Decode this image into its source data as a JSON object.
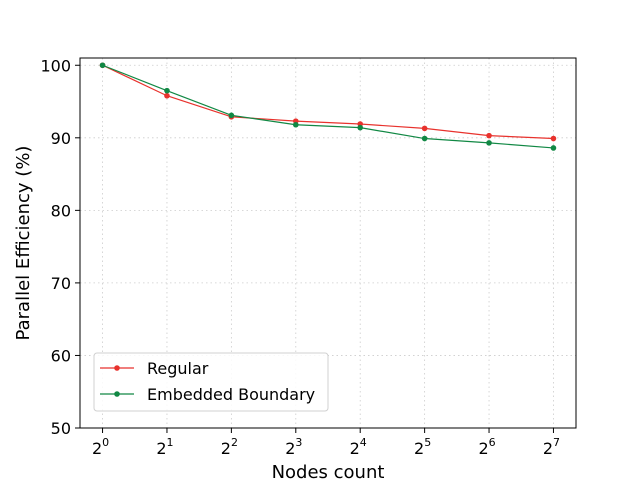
{
  "chart_data": {
    "type": "line",
    "title": "",
    "xlabel": "Nodes count",
    "ylabel": "Parallel Efficiency (%)",
    "x_base": "2",
    "x_exponents": [
      0,
      1,
      2,
      3,
      4,
      5,
      6,
      7
    ],
    "x": [
      1,
      2,
      4,
      8,
      16,
      32,
      64,
      128
    ],
    "x_scale": "log2",
    "ylim": [
      50,
      101
    ],
    "yticks": [
      50,
      60,
      70,
      80,
      90,
      100
    ],
    "grid": true,
    "grid_style": "dotted",
    "legend_position": "lower-left",
    "series": [
      {
        "name": "Regular",
        "color": "#e8322d",
        "marker": "dot",
        "values": [
          100,
          95.8,
          92.9,
          92.3,
          91.9,
          91.3,
          90.3,
          89.9
        ]
      },
      {
        "name": "Embedded Boundary",
        "color": "#118844",
        "marker": "dot",
        "values": [
          100,
          96.5,
          93.1,
          91.8,
          91.4,
          89.9,
          89.3,
          88.6
        ]
      }
    ]
  }
}
